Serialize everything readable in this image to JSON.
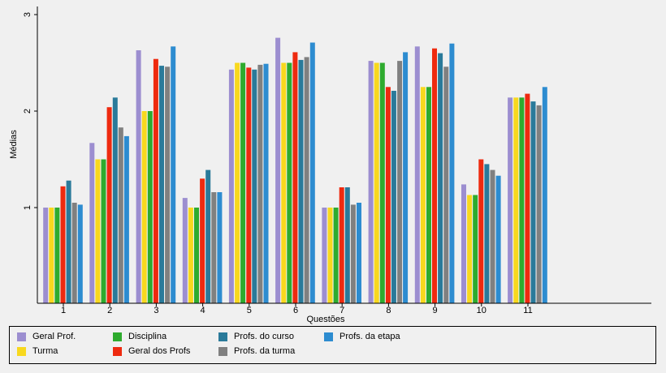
{
  "chart_data": {
    "type": "bar",
    "xlabel": "Questões",
    "ylabel": "Médias",
    "ylim": [
      0.0,
      3.1
    ],
    "yticks": [
      1,
      2,
      3
    ],
    "ytick_labels": [
      "1",
      "2",
      "3"
    ],
    "categories": [
      "1",
      "2",
      "3",
      "4",
      "5",
      "6",
      "7",
      "8",
      "9",
      "10",
      "11"
    ],
    "grid": false,
    "legend_position": "bottom",
    "series": [
      {
        "name": "Geral Prof.",
        "color": "#9c8ed0",
        "values": [
          1.0,
          1.67,
          2.63,
          1.1,
          2.43,
          2.76,
          1.0,
          2.52,
          2.67,
          1.24,
          2.14
        ]
      },
      {
        "name": "Turma",
        "color": "#f8d81e",
        "values": [
          1.0,
          1.5,
          2.0,
          1.0,
          2.5,
          2.5,
          1.0,
          2.5,
          2.25,
          1.13,
          2.14
        ]
      },
      {
        "name": "Disciplina",
        "color": "#2eab2e",
        "values": [
          1.0,
          1.5,
          2.0,
          1.0,
          2.5,
          2.5,
          1.0,
          2.5,
          2.25,
          1.13,
          2.14
        ]
      },
      {
        "name": "Geral dos Profs",
        "color": "#ee2a0f",
        "values": [
          1.22,
          2.04,
          2.54,
          1.3,
          2.45,
          2.61,
          1.21,
          2.25,
          2.65,
          1.5,
          2.18
        ]
      },
      {
        "name": "Profs. do curso",
        "color": "#2a7a9a",
        "values": [
          1.28,
          2.14,
          2.47,
          1.39,
          2.43,
          2.53,
          1.21,
          2.21,
          2.6,
          1.45,
          2.1
        ]
      },
      {
        "name": "Profs. da turma",
        "color": "#808080",
        "values": [
          1.05,
          1.83,
          2.46,
          1.16,
          2.48,
          2.56,
          1.03,
          2.52,
          2.46,
          1.39,
          2.06
        ]
      },
      {
        "name": "Profs. da etapa",
        "color": "#2d8cd0",
        "values": [
          1.03,
          1.74,
          2.67,
          1.16,
          2.49,
          2.71,
          1.05,
          2.61,
          2.7,
          1.33,
          2.25
        ]
      }
    ]
  }
}
